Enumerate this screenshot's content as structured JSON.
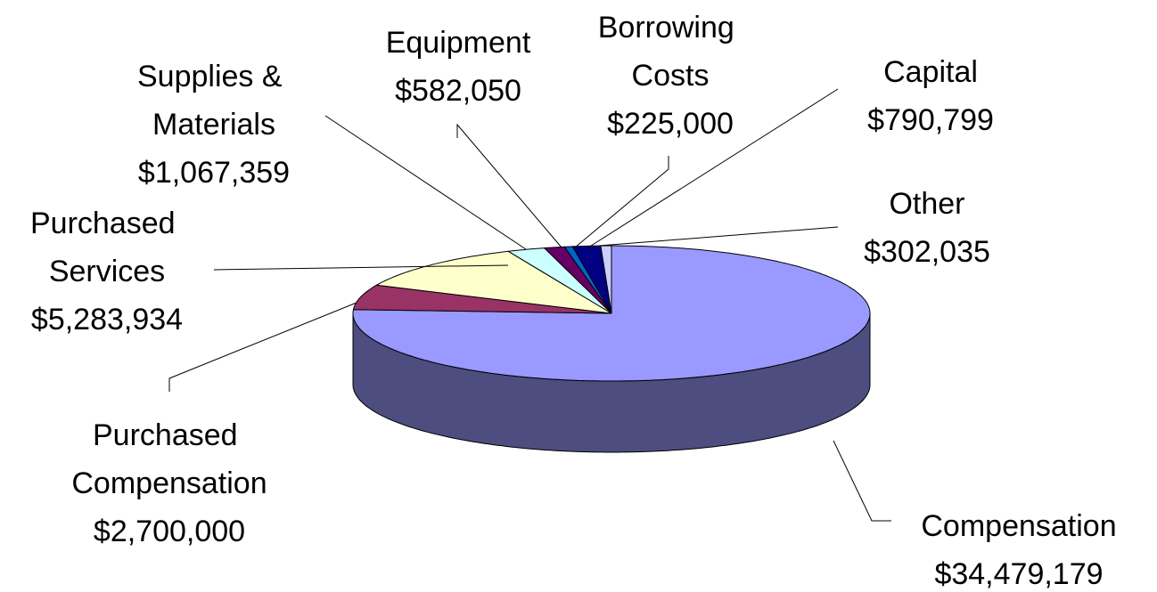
{
  "chart_data": {
    "type": "pie",
    "categories": [
      "Compensation",
      "Purchased Compensation",
      "Purchased Services",
      "Supplies & Materials",
      "Equipment",
      "Borrowing Costs",
      "Capital",
      "Other"
    ],
    "values": [
      34479179,
      2700000,
      5283934,
      1067359,
      582050,
      225000,
      790799,
      302035
    ],
    "value_labels": [
      "$34,479,179",
      "$2,700,000",
      "$5,283,934",
      "$1,067,359",
      "$582,050",
      "$225,000",
      "$790,799",
      "$302,035"
    ],
    "colors": [
      "#9999ff",
      "#993366",
      "#ffffcc",
      "#ccffff",
      "#660066",
      "#0066cc",
      "#000080",
      "#ccccff"
    ]
  }
}
